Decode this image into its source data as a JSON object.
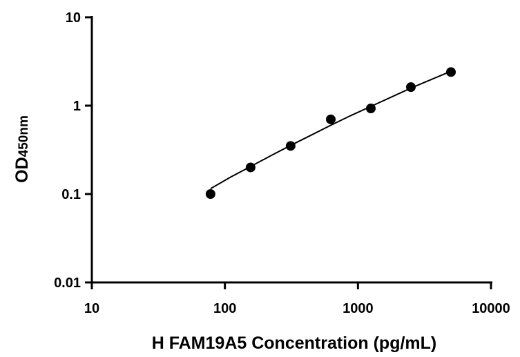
{
  "chart_data": {
    "type": "scatter",
    "xlabel": "H FAM19A5 Concentration (pg/mL)",
    "ylabel_main": "OD",
    "ylabel_sub": "450nm",
    "xscale": "log",
    "yscale": "log",
    "xlim": [
      10,
      10000
    ],
    "ylim": [
      0.01,
      10
    ],
    "xticks": [
      "10",
      "100",
      "1000",
      "10000"
    ],
    "yticks": [
      "0.01",
      "0.1",
      "1",
      "10"
    ],
    "grid": false,
    "series": [
      {
        "x": [
          78,
          156,
          312,
          625,
          1250,
          2500,
          5000
        ],
        "y": [
          0.1,
          0.2,
          0.35,
          0.7,
          0.93,
          1.62,
          2.4
        ]
      }
    ],
    "fit_curve": {
      "x": [
        78,
        110,
        156,
        220,
        312,
        440,
        625,
        880,
        1250,
        1760,
        2500,
        3540,
        5000
      ],
      "y": [
        0.115,
        0.155,
        0.205,
        0.27,
        0.355,
        0.46,
        0.6,
        0.77,
        0.98,
        1.24,
        1.58,
        1.97,
        2.45
      ]
    },
    "colors": {
      "marker": "#000000",
      "line": "#000000",
      "axis": "#000000"
    }
  }
}
